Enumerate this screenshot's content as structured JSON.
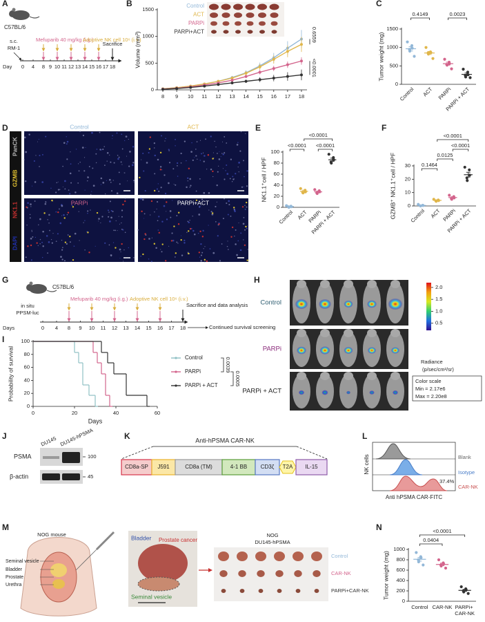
{
  "panel_labels": [
    "A",
    "B",
    "C",
    "D",
    "E",
    "F",
    "G",
    "H",
    "I",
    "J",
    "K",
    "L",
    "M",
    "N"
  ],
  "timeline_a": {
    "strain": "C57BL/6",
    "route": "s.c.",
    "cells": "RM-1",
    "drug": "Mefuparib 40 mg/kg (i.g.)",
    "nk": "Adoptive NK cell 10⁶ (i.v.)",
    "end": "Sacrifice",
    "axis_label": "Day",
    "days": [
      0,
      4,
      8,
      9,
      10,
      11,
      12,
      13,
      14,
      15,
      16,
      17,
      18
    ],
    "dose_days": [
      8,
      10,
      12,
      14,
      16
    ],
    "end_day": 18
  },
  "chart_data": [
    {
      "type": "line",
      "ylabel": "Volume (mm³)",
      "x": [
        8,
        9,
        10,
        11,
        12,
        13,
        14,
        15,
        16,
        17,
        18
      ],
      "xlim": [
        7.6,
        18.4
      ],
      "xticks": [
        8,
        9,
        10,
        11,
        12,
        13,
        14,
        15,
        16,
        17,
        18
      ],
      "ylim": [
        0,
        1500
      ],
      "yticks": [
        0,
        500,
        1000,
        1500
      ],
      "series": [
        {
          "name": "Control",
          "color": "#93b8d8",
          "values": [
            20,
            40,
            70,
            110,
            160,
            230,
            320,
            450,
            600,
            780,
            950
          ],
          "errors": [
            5,
            8,
            10,
            15,
            20,
            30,
            45,
            60,
            90,
            130,
            170
          ]
        },
        {
          "name": "ACT",
          "color": "#e0b64a",
          "values": [
            20,
            40,
            70,
            110,
            160,
            220,
            310,
            430,
            570,
            720,
            850
          ],
          "errors": [
            5,
            8,
            10,
            15,
            20,
            30,
            40,
            55,
            80,
            110,
            140
          ]
        },
        {
          "name": "PARPi",
          "color": "#d3648c",
          "values": [
            15,
            30,
            55,
            90,
            130,
            180,
            250,
            330,
            400,
            470,
            540
          ],
          "errors": [
            4,
            6,
            8,
            12,
            15,
            20,
            30,
            40,
            50,
            60,
            70
          ]
        },
        {
          "name": "PARPi+ACT",
          "color": "#333333",
          "values": [
            10,
            25,
            45,
            70,
            100,
            130,
            160,
            190,
            220,
            250,
            280
          ],
          "errors": [
            3,
            5,
            8,
            10,
            15,
            20,
            30,
            45,
            60,
            80,
            100
          ]
        }
      ],
      "annotations": [
        "0.6559",
        "<0.0001"
      ]
    },
    {
      "type": "dot",
      "ylabel": "Tumor weight (mg)",
      "categories": [
        "Control",
        "ACT",
        "PARPi",
        "PARPi + ACT"
      ],
      "colors": [
        "#93b8d8",
        "#e0b64a",
        "#d3648c",
        "#333333"
      ],
      "values": [
        [
          1150,
          1050,
          980,
          950,
          900,
          760
        ],
        [
          1000,
          880,
          860,
          850,
          820,
          700
        ],
        [
          680,
          600,
          560,
          540,
          520,
          420
        ],
        [
          410,
          330,
          260,
          240,
          200,
          180
        ]
      ],
      "means": [
        965,
        850,
        560,
        270
      ],
      "errors": [
        60,
        40,
        40,
        35
      ],
      "ylim": [
        0,
        1500
      ],
      "yticks": [
        0,
        500,
        1000,
        1500
      ],
      "brackets": [
        {
          "from": "Control",
          "to": "ACT",
          "label": "0.4149"
        },
        {
          "from": "PARPi",
          "to": "PARPi + ACT",
          "label": "0.0023"
        }
      ]
    },
    {
      "type": "dot",
      "ylabel": "NK1.1⁺cell / HPF",
      "categories": [
        "Control",
        "ACT",
        "PARPi",
        "PARPi + ACT"
      ],
      "colors": [
        "#93b8d8",
        "#e0b64a",
        "#d3648c",
        "#333333"
      ],
      "values": [
        [
          3,
          2,
          1,
          1,
          0
        ],
        [
          34,
          31,
          28,
          27,
          26
        ],
        [
          32,
          30,
          28,
          26,
          25
        ],
        [
          96,
          90,
          86,
          82,
          80
        ]
      ],
      "means": [
        1.5,
        29,
        28,
        86
      ],
      "errors": [
        0.5,
        2,
        1.5,
        3
      ],
      "ylim": [
        0,
        100
      ],
      "yticks": [
        0,
        20,
        40,
        60,
        80,
        100
      ],
      "brackets": [
        {
          "from": "Control",
          "to": "ACT",
          "label": "<0.0001"
        },
        {
          "from": "PARPi",
          "to": "PARPi + ACT",
          "label": "<0.0001"
        },
        {
          "from": "ACT",
          "to": "PARPi + ACT",
          "label": "<0.0001"
        }
      ]
    },
    {
      "type": "dot",
      "ylabel": "GZMB⁺ NK1.1⁺cell / HPF",
      "categories": [
        "Control",
        "ACT",
        "PARPi",
        "PARPi + ACT"
      ],
      "colors": [
        "#93b8d8",
        "#e0b64a",
        "#d3648c",
        "#333333"
      ],
      "values": [
        [
          1.2,
          0.5,
          0.3,
          0.1,
          0
        ],
        [
          5,
          4.5,
          4,
          3.8,
          3.5
        ],
        [
          8,
          7,
          6,
          5.5,
          5
        ],
        [
          29,
          27,
          23,
          21,
          19
        ]
      ],
      "means": [
        0.4,
        4.2,
        6.3,
        23.4
      ],
      "errors": [
        0.2,
        0.3,
        0.6,
        1.8
      ],
      "ylim": [
        0,
        30
      ],
      "yticks": [
        0,
        10,
        20,
        30
      ],
      "brackets": [
        {
          "from": "Control",
          "to": "ACT",
          "label": "0.1464"
        },
        {
          "from": "ACT",
          "to": "PARPi",
          "label": "0.0125"
        },
        {
          "from": "PARPi",
          "to": "PARPi + ACT",
          "label": "<0.0001"
        },
        {
          "from": "ACT",
          "to": "PARPi + ACT",
          "label": "<0.0001"
        }
      ]
    },
    {
      "type": "step",
      "ylabel": "Probability of survival",
      "xlabel": "Days",
      "xlim": [
        0,
        60
      ],
      "xticks": [
        0,
        20,
        40,
        60
      ],
      "ylim": [
        0,
        100
      ],
      "yticks": [
        0,
        20,
        40,
        60,
        80,
        100
      ],
      "series": [
        {
          "name": "Control",
          "color": "#8fc0c4",
          "x": [
            0,
            20,
            22,
            24,
            27,
            30
          ],
          "values": [
            100,
            83,
            67,
            33,
            17,
            0
          ]
        },
        {
          "name": "PARPi",
          "color": "#d3648c",
          "x": [
            0,
            29,
            31,
            33,
            35,
            37
          ],
          "values": [
            100,
            83,
            67,
            50,
            17,
            0
          ]
        },
        {
          "name": "PARPi + ACT",
          "color": "#333333",
          "x": [
            0,
            33,
            36,
            39,
            45,
            55
          ],
          "values": [
            100,
            83,
            67,
            50,
            17,
            0
          ]
        }
      ],
      "annotations": [
        "0.0039",
        "0.0005"
      ]
    },
    {
      "type": "dot",
      "ylabel": "Tumor weight (mg)",
      "categories": [
        "Control",
        "CAR-NK",
        "PARPi+ CAR-NK"
      ],
      "colors": [
        "#93b8d8",
        "#d3648c",
        "#333333"
      ],
      "values": [
        [
          940,
          860,
          840,
          800,
          760,
          700
        ],
        [
          800,
          740,
          720,
          700,
          680,
          640
        ],
        [
          280,
          240,
          220,
          200,
          180,
          150
        ]
      ],
      "means": [
        810,
        710,
        210
      ],
      "errors": [
        35,
        25,
        20
      ],
      "ylim": [
        0,
        1000
      ],
      "yticks": [
        0,
        200,
        400,
        600,
        800,
        1000
      ],
      "brackets": [
        {
          "from": "Control",
          "to": "CAR-NK",
          "label": "0.0404"
        },
        {
          "from": "Control",
          "to": "PARPi+ CAR-NK",
          "label": "<0.0001"
        }
      ]
    }
  ],
  "panel_d": {
    "groups": [
      "Control",
      "ACT",
      "PARPi",
      "PARPi+ACT"
    ],
    "channels": [
      "PanCK",
      "GZMB",
      "NK1.1",
      "DAPI"
    ]
  },
  "timeline_g": {
    "strain": "C57BL/6",
    "route": "in situ",
    "cells": "PPSM-luc",
    "drug": "Mefuparib 40 mg/kg (i.g.)",
    "nk": "Adoptive NK cell 10⁶ (i.v.)",
    "end": "Sacrifice and data analysis",
    "continued": "Continued survival screening",
    "axis_label": "Days",
    "days": [
      0,
      4,
      8,
      9,
      10,
      11,
      12,
      13,
      14,
      15,
      16,
      17,
      18
    ],
    "dose_days": [
      8,
      10,
      12,
      14,
      16
    ],
    "end_day": 18
  },
  "panel_h": {
    "groups": [
      "Control",
      "PARPi",
      "PARPi + ACT"
    ],
    "colorbar_lim": [
      0.2,
      2.2
    ],
    "colorbar_ticks": [
      {
        "value": 2,
        "label": "2.0"
      },
      {
        "value": 1.5,
        "label": "1.5"
      },
      {
        "value": 1,
        "label": "1.0"
      },
      {
        "value": 0.5,
        "label": "0.5"
      }
    ],
    "unit": "Radiance",
    "unit_detail": "(p/sec/cm²/sr)",
    "scale_title": "Color scale",
    "scale_min": "Min = 2.17e6",
    "scale_max": "Max = 2.20e8"
  },
  "panel_j": {
    "lanes": [
      "DU145",
      "DU145-hPSMA"
    ],
    "bands": [
      "PSMA",
      "β-actin"
    ],
    "markers": [
      100,
      45
    ]
  },
  "panel_k": {
    "title": "Anti-hPSMA CAR-NK",
    "segments": [
      "CD8a-SP",
      "J591",
      "CD8a (TM)",
      "4-1 BB",
      "CD3ζ",
      "T2A",
      "IL-15"
    ]
  },
  "panel_l": {
    "ylabel": "NK cells",
    "xlabel": "Anti hPSMA CAR-FITC",
    "samples": [
      "Blank",
      "Isotype",
      "CAR-NK"
    ],
    "percent": "37.4%"
  },
  "panel_m": {
    "model": "NOG mouse",
    "anatomy": [
      "Seminal vesicle",
      "Bladder",
      "Prostate",
      "Urethra"
    ],
    "photo_labels": [
      "Bladder",
      "Prostate cancer",
      "Seminal vesicle"
    ],
    "strain": "NOG",
    "cells": "DU145-hPSMA",
    "groups": [
      "Control",
      "CAR-NK",
      "PARPi+CAR-NK"
    ]
  }
}
